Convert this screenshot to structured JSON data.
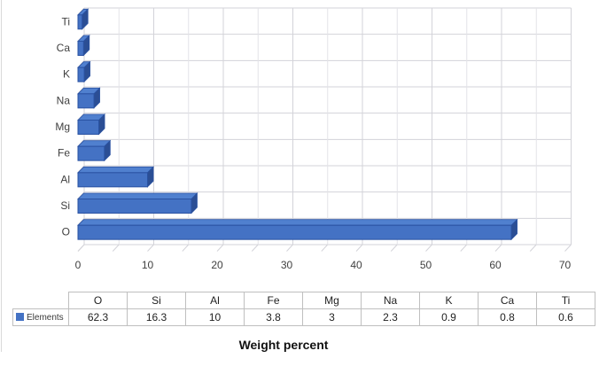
{
  "page": {
    "background": "#ffffff"
  },
  "chart_data": {
    "type": "bar",
    "orientation": "horizontal",
    "style": "3d",
    "title": "Weight percent",
    "categories": [
      "O",
      "Si",
      "Al",
      "Fe",
      "Mg",
      "Na",
      "K",
      "Ca",
      "Ti"
    ],
    "values": [
      62.3,
      16.3,
      10,
      3.8,
      3,
      2.3,
      0.9,
      0.8,
      0.6
    ],
    "series": [
      {
        "name": "Elements",
        "color": "#4472C4"
      }
    ],
    "bar_order_top_to_bottom": [
      "Ti",
      "Ca",
      "K",
      "Na",
      "Mg",
      "Fe",
      "Al",
      "Si",
      "O"
    ],
    "xlim": [
      0,
      70
    ],
    "x_tick_step": 10,
    "x_tick_labels": [
      "0",
      "10",
      "20",
      "30",
      "40",
      "50",
      "60",
      "70"
    ],
    "gridline_step": 5,
    "grid": true,
    "legend_position": "table-left",
    "colors": {
      "bar_front": "#4472C4",
      "bar_top": "#5080CF",
      "bar_side": "#2B4E94",
      "bar_outline": "#2A52A2",
      "grid_major": "#D3D3D9",
      "grid_minor": "#E3E3E8",
      "axis_text": "#404040"
    }
  },
  "table": {
    "legend_label": "Elements",
    "headers": [
      "O",
      "Si",
      "Al",
      "Fe",
      "Mg",
      "Na",
      "K",
      "Ca",
      "Ti"
    ],
    "values": [
      "62.3",
      "16.3",
      "10",
      "3.8",
      "3",
      "2.3",
      "0.9",
      "0.8",
      "0.6"
    ]
  }
}
